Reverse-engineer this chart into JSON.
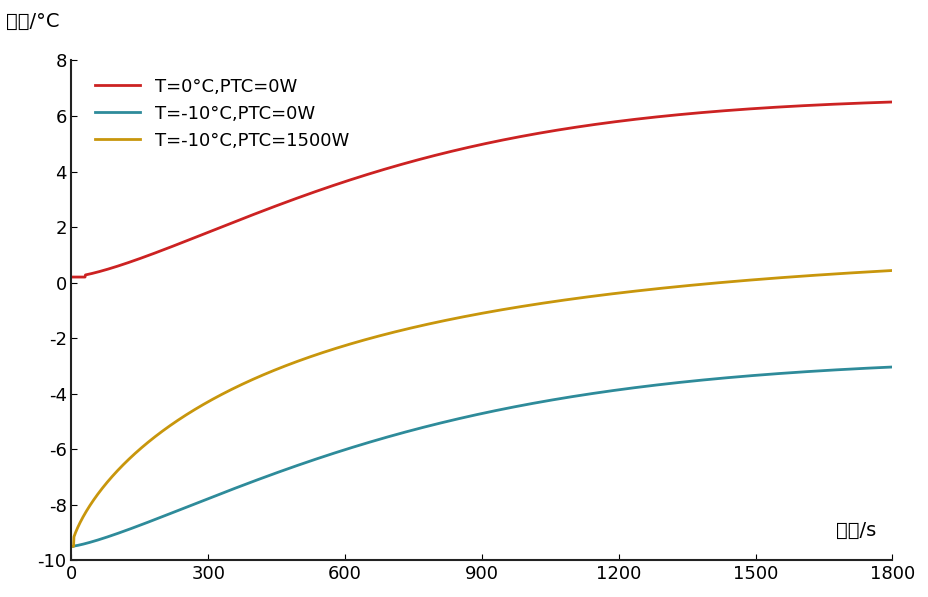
{
  "title": "",
  "xlabel": "时间/s",
  "ylabel": "温度/°C",
  "xlim": [
    0,
    1800
  ],
  "ylim": [
    -10,
    8
  ],
  "xticks": [
    0,
    300,
    600,
    900,
    1200,
    1500,
    1800
  ],
  "yticks": [
    -10,
    -8,
    -6,
    -4,
    -2,
    0,
    2,
    4,
    6,
    8
  ],
  "background_color": "#ffffff",
  "series": [
    {
      "label": "T=0°C,PTC=0W",
      "color": "#cc2222",
      "start": 0.2,
      "end": 6.7,
      "k": 0.0018,
      "delay": 30
    },
    {
      "label": "T=-10°C,PTC=0W",
      "color": "#2e8b9a",
      "start": -9.5,
      "end": -2.7,
      "k": 0.0022,
      "delay": 5
    },
    {
      "label": "T=-10°C,PTC=1500W",
      "color": "#c8960c",
      "start": -9.5,
      "end": 1.3,
      "k": 0.003,
      "delay": 5
    }
  ]
}
